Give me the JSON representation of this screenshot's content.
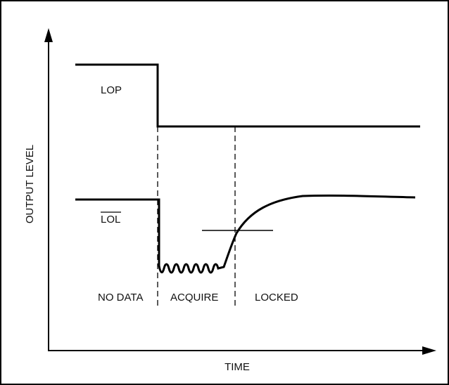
{
  "axes": {
    "y_label": "OUTPUT LEVEL",
    "x_label": "TIME"
  },
  "signals": {
    "lop": {
      "label": "LOP"
    },
    "lol": {
      "label": "LOL",
      "overbar": true
    }
  },
  "regions": [
    {
      "label": "NO DATA"
    },
    {
      "label": "ACQUIRE"
    },
    {
      "label": "LOCKED"
    }
  ],
  "colors": {
    "line": "#000000",
    "background": "#ffffff"
  }
}
